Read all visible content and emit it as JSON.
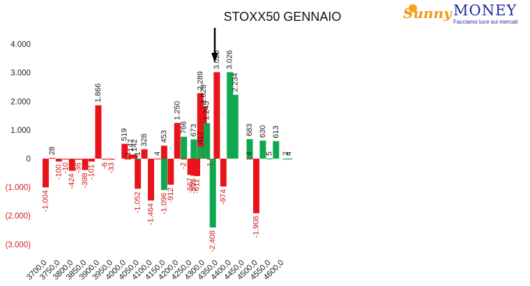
{
  "chart_data": {
    "type": "bar",
    "title": "STOXX50 GENNAIO",
    "xlabel": "",
    "ylabel": "",
    "ylim": [
      -3000,
      4000
    ],
    "yticks": [
      4000,
      3000,
      2000,
      1000,
      0,
      -1000,
      -2000,
      -3000
    ],
    "ytick_labels": [
      "4.000",
      "3.000",
      "2.000",
      "1.000",
      "0",
      "(1.000)",
      "(2.000)",
      "(3.000)"
    ],
    "xtick_labels": [
      "3700,0",
      "3750,0",
      "3800,0",
      "3850,0",
      "3900,0",
      "3950,0",
      "4000,0",
      "4050,0",
      "4100,0",
      "4150,0",
      "4200,0",
      "4250,0",
      "4300,0",
      "4350,0",
      "4400,0",
      "4450,0",
      "4500,0",
      "4550,0",
      "4600,0"
    ],
    "grid": false,
    "colors": {
      "red_series": "#e8141b",
      "green_series": "#10a84e",
      "negative_label": "#d11a1a",
      "positive_label": "#222222"
    },
    "series": [
      {
        "color": "red",
        "strikes": [
          3700,
          3725,
          3750,
          3775,
          3800,
          3825,
          3850,
          3875,
          3900,
          3925,
          3950,
          4000,
          4012.5,
          4025,
          4037.5,
          4050,
          4075,
          4100,
          4125,
          4150,
          4175,
          4200,
          4225,
          4250,
          4262.5,
          4275,
          4287.5,
          4300,
          4325,
          4350,
          4375,
          4475,
          4500
        ],
        "values": [
          -1004,
          28,
          -100,
          -10,
          -424,
          -36,
          -398,
          -101,
          1866,
          -6,
          -33,
          519,
          1,
          147,
          142,
          -1052,
          328,
          -1464,
          4,
          453,
          -912,
          1250,
          -2,
          -567,
          -595,
          -611,
          2289,
          1828,
          -1,
          3026,
          -974,
          4,
          -1908
        ],
        "labels": [
          "-1.004",
          "28",
          "-100",
          "-10",
          "-424",
          "-36",
          "-398",
          "-101",
          "1.866",
          "-6",
          "-33",
          "519",
          "1",
          "147",
          "142",
          "-1.052",
          "328",
          "-1.464",
          "4",
          "453",
          "-912",
          "1.250",
          "-2",
          "-567",
          "-595",
          "-611",
          "2.289",
          "1.828",
          "-1",
          "3.026",
          "-974",
          "4",
          "-1.908"
        ]
      },
      {
        "color": "green",
        "strikes": [
          4050,
          4150,
          4225,
          4262.5,
          4287.5,
          4312.5,
          4335,
          4400,
          4420,
          4475,
          4525,
          4550,
          4575,
          4612.5
        ],
        "values": [
          1,
          -1096,
          766,
          673,
          417,
          1245,
          -2408,
          3026,
          2234,
          683,
          630,
          5,
          613,
          2
        ],
        "labels": [
          "1",
          "-1.096",
          "766",
          "673",
          "417",
          "1.245",
          "-2.408",
          "3.026",
          "2.234",
          "683",
          "630",
          "5",
          "613",
          "2"
        ]
      },
      {
        "color": "green",
        "strikes": [
          4625
        ],
        "values": [
          4
        ],
        "labels": [
          "4"
        ]
      }
    ],
    "annotations": [
      {
        "type": "arrow-down",
        "x": 4345
      }
    ]
  },
  "logo": {
    "brand_left": "Sunny",
    "brand_right": "MONEY",
    "tagline": "Facciamo luce sui mercati",
    "colors": {
      "sunny": "#f29a1a",
      "money": "#1a2aa8",
      "tagline": "#2a2aa0"
    }
  }
}
